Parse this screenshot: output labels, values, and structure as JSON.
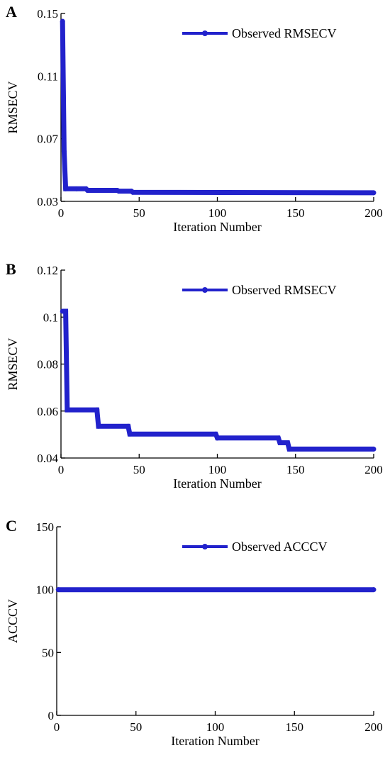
{
  "chart_data": [
    {
      "type": "line",
      "panel_label": "A",
      "xlabel": "Iteration Number",
      "ylabel": "RMSECV",
      "xlim": [
        0,
        200
      ],
      "ylim": [
        0.03,
        0.15
      ],
      "xticks": [
        0,
        50,
        100,
        150,
        200
      ],
      "yticks": [
        0.03,
        0.07,
        0.11,
        0.15
      ],
      "ytick_labels": [
        "0.03",
        "0.07",
        "0.11",
        "0.15"
      ],
      "legend_position": "top-right",
      "color": "#2222cc",
      "series": [
        {
          "name": "Observed RMSECV",
          "x": [
            1,
            2,
            3,
            10,
            16,
            17,
            36,
            37,
            45,
            46,
            200
          ],
          "y": [
            0.145,
            0.062,
            0.038,
            0.038,
            0.038,
            0.037,
            0.037,
            0.0365,
            0.0365,
            0.0358,
            0.0355
          ]
        }
      ]
    },
    {
      "type": "line",
      "panel_label": "B",
      "xlabel": "Iteration Number",
      "ylabel": "RMSECV",
      "xlim": [
        0,
        200
      ],
      "ylim": [
        0.04,
        0.12
      ],
      "xticks": [
        0,
        50,
        100,
        150,
        200
      ],
      "yticks": [
        0.04,
        0.06,
        0.08,
        0.1,
        0.12
      ],
      "ytick_labels": [
        "0.04",
        "0.06",
        "0.08",
        "0.1",
        "0.12"
      ],
      "legend_position": "top-right",
      "color": "#2222cc",
      "series": [
        {
          "name": "Observed RMSECV",
          "x": [
            1,
            3,
            4,
            23,
            24,
            43,
            44,
            99,
            100,
            139,
            140,
            145,
            146,
            200
          ],
          "y": [
            0.1025,
            0.1025,
            0.0605,
            0.0605,
            0.0535,
            0.0535,
            0.0502,
            0.0502,
            0.0485,
            0.0485,
            0.0465,
            0.0465,
            0.0438,
            0.0438
          ]
        }
      ]
    },
    {
      "type": "line",
      "panel_label": "C",
      "xlabel": "Iteration Number",
      "ylabel": "ACCCV",
      "xlim": [
        0,
        200
      ],
      "ylim": [
        0,
        150
      ],
      "xticks": [
        0,
        50,
        100,
        150,
        200
      ],
      "yticks": [
        0,
        50,
        100,
        150
      ],
      "ytick_labels": [
        "0",
        "50",
        "100",
        "150"
      ],
      "legend_position": "top-right",
      "color": "#2222cc",
      "series": [
        {
          "name": "Observed ACCCV",
          "x": [
            1,
            200
          ],
          "y": [
            100,
            100
          ]
        }
      ]
    }
  ]
}
